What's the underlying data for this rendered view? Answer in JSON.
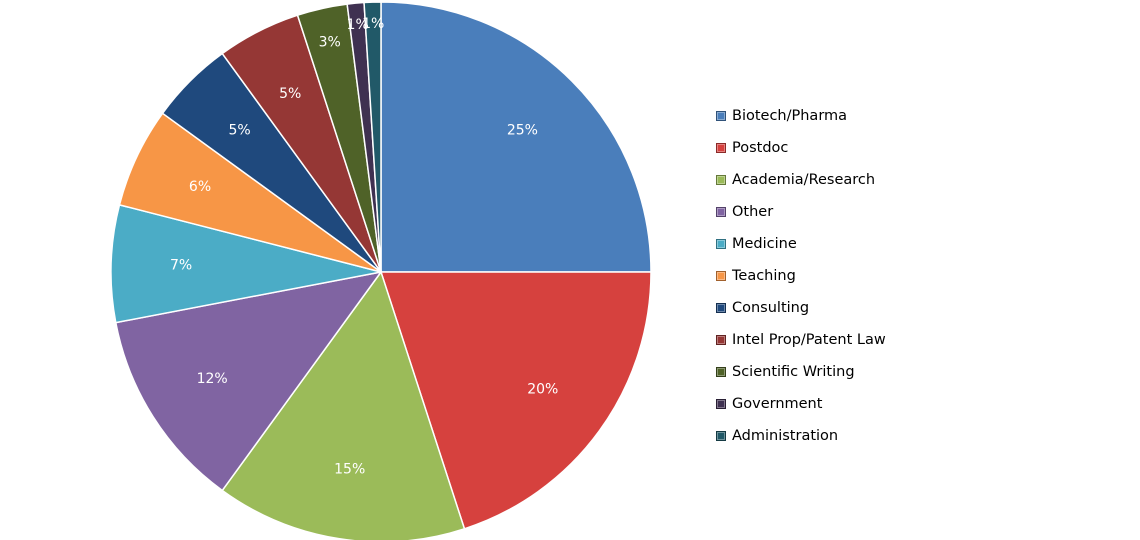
{
  "chart_data": {
    "type": "pie",
    "categories": [
      "Biotech/Pharma",
      "Postdoc",
      "Academia/Research",
      "Other",
      "Medicine",
      "Teaching",
      "Consulting",
      "Intel Prop/Patent Law",
      "Scientific Writing",
      "Government",
      "Administration"
    ],
    "values": [
      25,
      20,
      15,
      12,
      7,
      6,
      5,
      5,
      3,
      1,
      1
    ],
    "data_labels": [
      "25%",
      "20%",
      "15%",
      "12%",
      "7%",
      "6%",
      "5%",
      "5%",
      "3%",
      "1%",
      "1%"
    ],
    "colors": [
      "#4a7ebb",
      "#d6413e",
      "#9bbb59",
      "#8064a2",
      "#4bacc6",
      "#f79646",
      "#1f497d",
      "#953735",
      "#4f6228",
      "#3f3151",
      "#215968"
    ],
    "legend_position": "right"
  }
}
